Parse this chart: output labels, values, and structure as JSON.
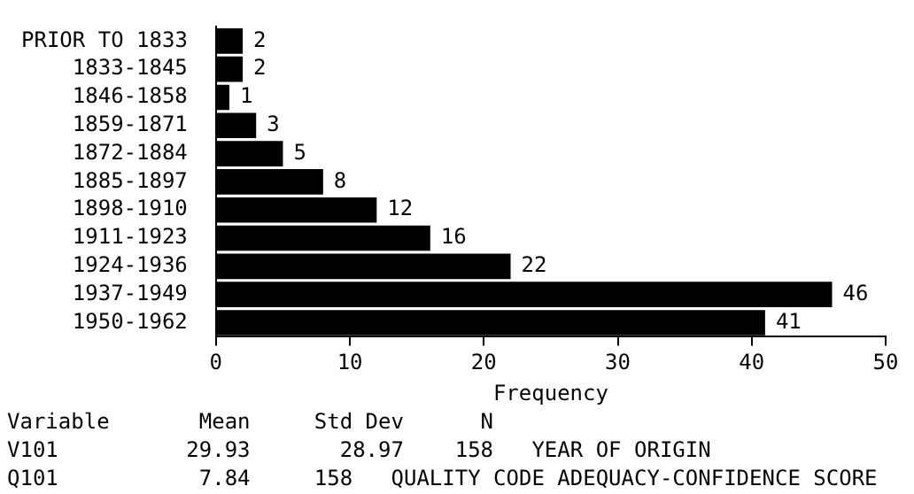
{
  "chart_data": {
    "type": "bar",
    "orientation": "horizontal",
    "xlabel": "Frequency",
    "categories": [
      "PRIOR TO 1833",
      "1833-1845",
      "1846-1858",
      "1859-1871",
      "1872-1884",
      "1885-1897",
      "1898-1910",
      "1911-1923",
      "1924-1936",
      "1937-1949",
      "1950-1962"
    ],
    "values": [
      2,
      2,
      1,
      3,
      5,
      8,
      12,
      16,
      22,
      46,
      41
    ],
    "color": "#000000",
    "data_labels": true,
    "grid": false,
    "legend": false,
    "xlim": [
      0,
      50
    ],
    "xticks": [
      0,
      10,
      20,
      30,
      40,
      50
    ],
    "annotations": [
      "Variable       Mean     Std Dev      N",
      "V101          29.93       28.97    158   YEAR OF ORIGIN",
      "Q101           7.84     158   QUALITY CODE ADEQUACY-CONFIDENCE SCORE"
    ]
  }
}
